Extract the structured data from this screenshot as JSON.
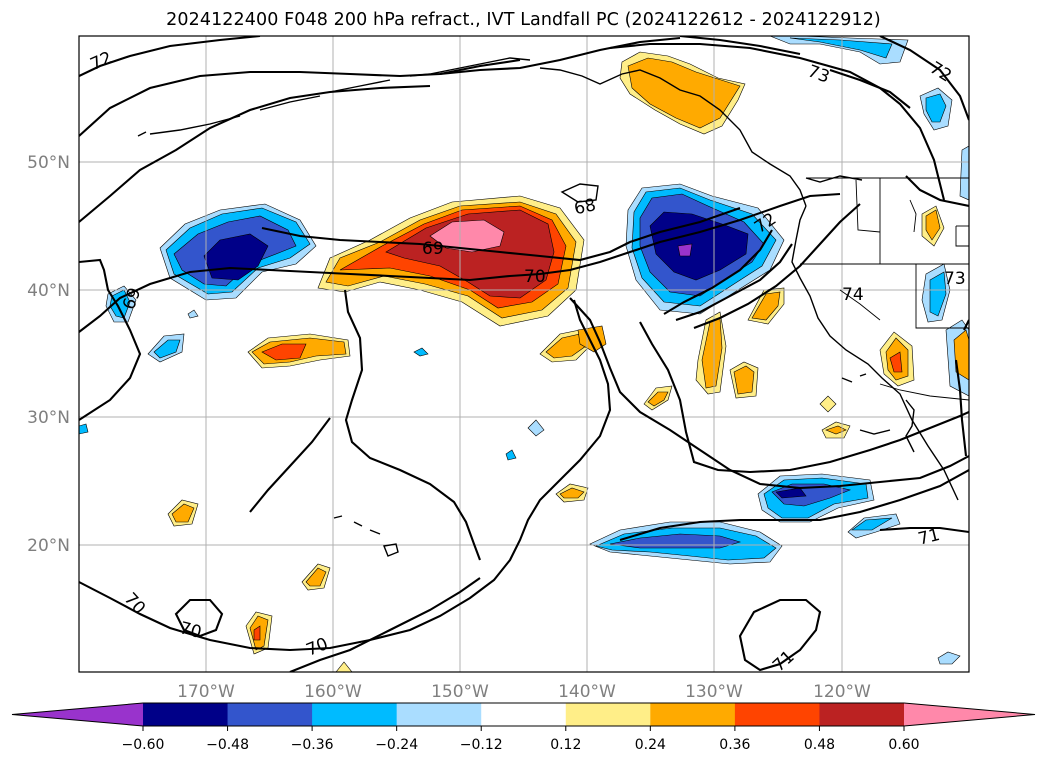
{
  "title": "2024122400 F048 200 hPa refract., IVT Landfall PC (2024122612 - 2024122912)",
  "latitude_labels": [
    "50°N",
    "40°N",
    "30°N",
    "20°N"
  ],
  "longitude_labels": [
    "170°W",
    "160°W",
    "150°W",
    "140°W",
    "130°W",
    "120°W"
  ],
  "colorbar": {
    "ticks": [
      "−0.60",
      "−0.48",
      "−0.36",
      "−0.24",
      "−0.12",
      "0.12",
      "0.24",
      "0.36",
      "0.48",
      "0.60"
    ],
    "colors": [
      "#9933cc",
      "#000088",
      "#3355cc",
      "#00bbff",
      "#aaddff",
      "#ffffff",
      "#ffee88",
      "#ffaa00",
      "#ff4400",
      "#bb2222",
      "#ff88aa"
    ]
  },
  "contour_labels": [
    {
      "text": "72"
    },
    {
      "text": "73"
    },
    {
      "text": "72"
    },
    {
      "text": "68"
    },
    {
      "text": "69"
    },
    {
      "text": "70"
    },
    {
      "text": "72"
    },
    {
      "text": "69"
    },
    {
      "text": "74"
    },
    {
      "text": "73"
    },
    {
      "text": "71"
    },
    {
      "text": "70"
    },
    {
      "text": "70"
    },
    {
      "text": "70"
    },
    {
      "text": "71"
    }
  ]
}
